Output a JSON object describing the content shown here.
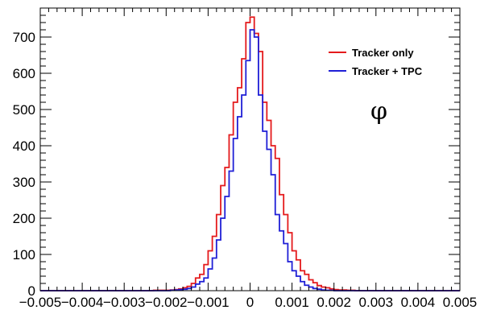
{
  "chart_data": {
    "type": "histogram",
    "title": "",
    "xlabel": "",
    "ylabel": "",
    "xlim": [
      -0.005,
      0.005
    ],
    "ylim": [
      0,
      780
    ],
    "grid": false,
    "legend_placement": "top-right",
    "annotation": "φ",
    "x_tick_labels": [
      "−0.005",
      "−0.004",
      "−0.003",
      "−0.002",
      "−0.001",
      "0",
      "0.001",
      "0.002",
      "0.003",
      "0.004",
      "0.005"
    ],
    "x_tick_values": [
      -0.005,
      -0.004,
      -0.003,
      -0.002,
      -0.001,
      0,
      0.001,
      0.002,
      0.003,
      0.004,
      0.005
    ],
    "y_tick_labels": [
      "0",
      "100",
      "200",
      "300",
      "400",
      "500",
      "600",
      "700"
    ],
    "y_tick_values": [
      0,
      100,
      200,
      300,
      400,
      500,
      600,
      700
    ],
    "bin_edges_start": -0.005,
    "bin_width": 0.0001,
    "series": [
      {
        "name": "Tracker only",
        "color": "#e41a1c",
        "values": [
          0,
          0,
          0,
          0,
          0,
          0,
          0,
          0,
          0,
          0,
          0,
          0,
          0,
          0,
          0,
          0,
          0,
          0,
          0,
          0,
          0,
          0,
          0,
          0,
          0,
          0,
          0,
          1,
          1,
          1,
          1,
          2,
          3,
          5,
          8,
          12,
          20,
          35,
          45,
          72,
          110,
          150,
          210,
          290,
          340,
          430,
          520,
          560,
          640,
          740,
          755,
          710,
          660,
          520,
          470,
          400,
          365,
          265,
          210,
          160,
          110,
          85,
          55,
          45,
          30,
          22,
          14,
          10,
          8,
          5,
          3,
          2,
          2,
          1,
          1,
          0,
          0,
          0,
          0,
          0,
          0,
          0,
          0,
          0,
          0,
          0,
          0,
          0,
          0,
          0,
          0,
          0,
          0,
          0,
          0,
          0,
          0,
          0,
          0,
          0
        ]
      },
      {
        "name": "Tracker + TPC",
        "color": "#1f1fd6",
        "values": [
          0,
          0,
          0,
          0,
          0,
          0,
          0,
          0,
          0,
          0,
          0,
          0,
          0,
          0,
          0,
          0,
          0,
          0,
          0,
          0,
          0,
          0,
          0,
          0,
          0,
          0,
          0,
          0,
          0,
          0,
          0,
          1,
          2,
          3,
          4,
          6,
          10,
          18,
          25,
          35,
          60,
          90,
          140,
          200,
          260,
          330,
          420,
          480,
          540,
          635,
          720,
          700,
          540,
          440,
          390,
          320,
          210,
          165,
          130,
          80,
          55,
          40,
          25,
          15,
          10,
          6,
          4,
          2,
          1,
          1,
          0,
          0,
          0,
          0,
          0,
          0,
          0,
          0,
          0,
          0,
          0,
          0,
          0,
          0,
          0,
          0,
          0,
          0,
          0,
          0,
          0,
          0,
          0,
          0,
          0,
          0,
          0,
          0,
          0,
          0
        ]
      }
    ]
  }
}
